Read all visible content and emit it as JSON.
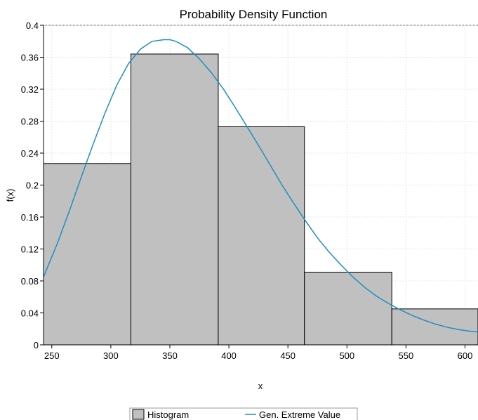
{
  "colors": {
    "bar_fill": "#c0c0c0",
    "bar_stroke": "#000000",
    "curve": "#1f8fc1",
    "grid": "#e6e6d8"
  },
  "chart_data": {
    "type": "bar",
    "title": "Probability Density Function",
    "xlabel": "x",
    "ylabel": "f(x)",
    "xlim": [
      243,
      611
    ],
    "ylim": [
      0,
      0.4
    ],
    "xticks": [
      250,
      300,
      350,
      400,
      450,
      500,
      550,
      600
    ],
    "yticks": [
      0,
      0.04,
      0.08,
      0.12,
      0.16,
      0.2,
      0.24,
      0.28,
      0.32,
      0.36,
      0.4
    ],
    "grid": true,
    "legend_position": "bottom",
    "histogram": {
      "name": "Histogram",
      "bins": [
        {
          "x0": 243,
          "x1": 317,
          "value": 0.227
        },
        {
          "x0": 317,
          "x1": 391,
          "value": 0.364
        },
        {
          "x0": 391,
          "x1": 464,
          "value": 0.273
        },
        {
          "x0": 464,
          "x1": 538,
          "value": 0.091
        },
        {
          "x0": 538,
          "x1": 611,
          "value": 0.045
        }
      ]
    },
    "series": [
      {
        "name": "Gen. Extreme Value",
        "type": "line",
        "x": [
          243,
          255,
          265,
          275,
          285,
          295,
          305,
          315,
          325,
          335,
          345,
          350,
          355,
          365,
          375,
          385,
          395,
          405,
          415,
          425,
          435,
          445,
          455,
          465,
          475,
          485,
          495,
          505,
          515,
          525,
          535,
          545,
          555,
          565,
          575,
          585,
          595,
          605,
          611
        ],
        "y": [
          0.085,
          0.128,
          0.168,
          0.21,
          0.251,
          0.29,
          0.325,
          0.352,
          0.37,
          0.38,
          0.382,
          0.382,
          0.38,
          0.372,
          0.358,
          0.341,
          0.321,
          0.298,
          0.274,
          0.25,
          0.225,
          0.2,
          0.177,
          0.155,
          0.134,
          0.116,
          0.1,
          0.085,
          0.072,
          0.061,
          0.052,
          0.044,
          0.037,
          0.031,
          0.026,
          0.022,
          0.019,
          0.017,
          0.016
        ]
      }
    ]
  }
}
